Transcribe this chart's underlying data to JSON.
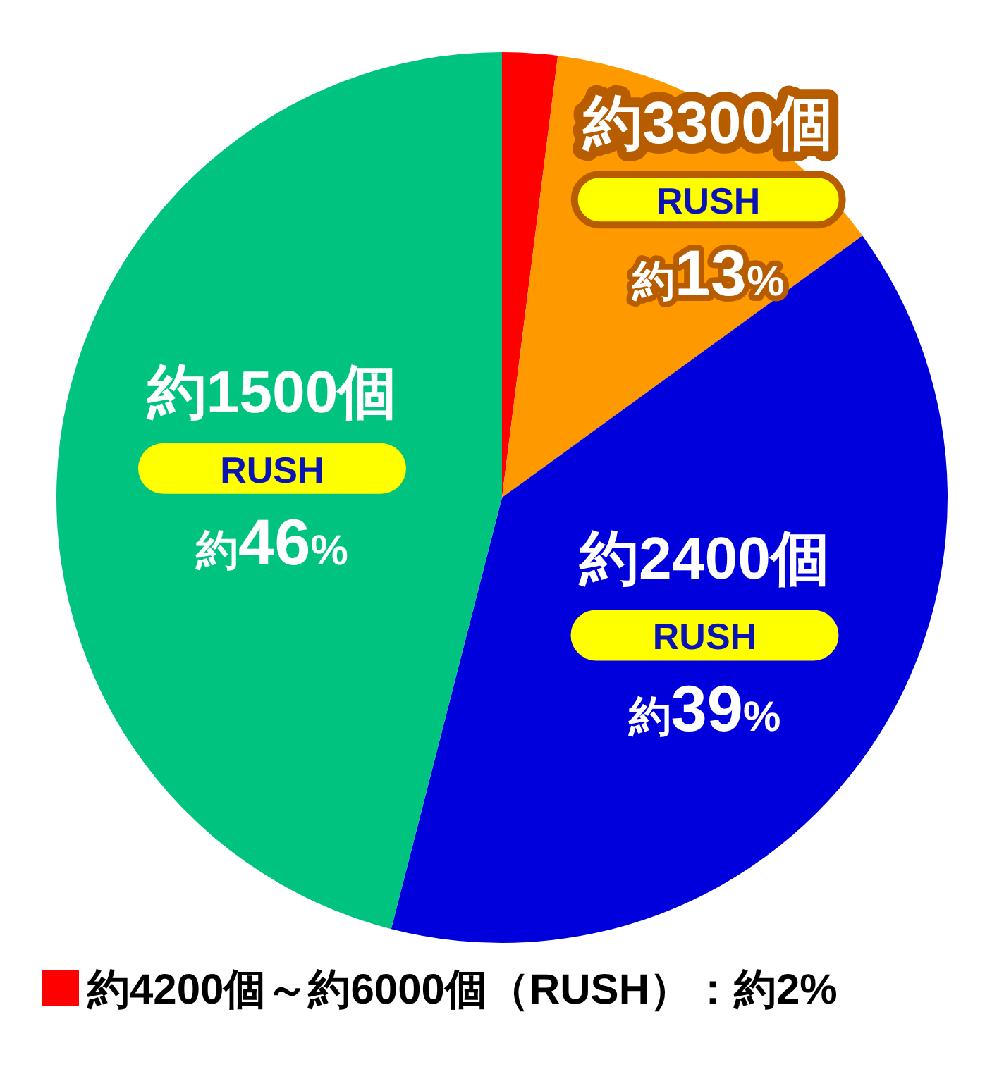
{
  "chart_data": {
    "type": "pie",
    "categories": [
      "約4200個～約6000個（RUSH）：約2%",
      "約3300個",
      "約2400個",
      "約1500個"
    ],
    "values": [
      2,
      13,
      39,
      46
    ],
    "colors": [
      "#ff0000",
      "#ff9900",
      "#0000dd",
      "#00c37f"
    ],
    "value_labels": [
      null,
      "約13%",
      "約39%",
      "約46%"
    ],
    "annotations": [
      {
        "text": "RUSH",
        "x": "約3300個"
      },
      {
        "text": "RUSH",
        "x": "約2400個"
      },
      {
        "text": "RUSH",
        "x": "約1500個"
      }
    ],
    "legend": "bottom"
  }
}
